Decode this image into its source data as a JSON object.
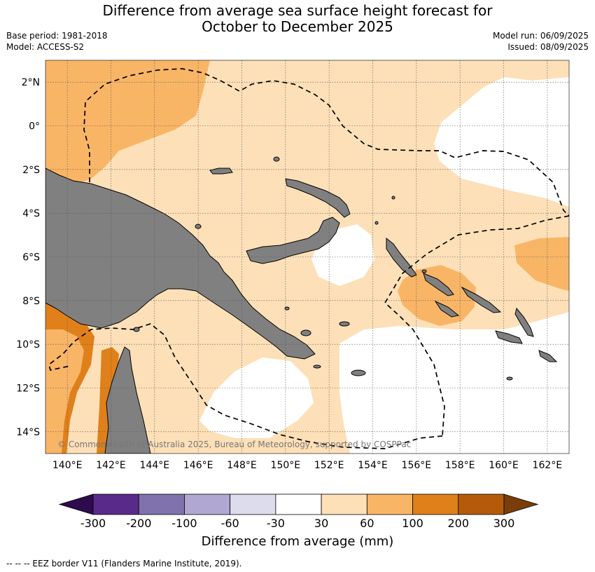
{
  "title": {
    "line1": "Difference from average sea surface height forecast for",
    "line2": "October to December 2025"
  },
  "meta": {
    "base_period": "Base period: 1981-2018",
    "model": "Model: ACCESS-S2",
    "model_run": "Model run: 06/09/2025",
    "issued": "Issued: 08/09/2025"
  },
  "map": {
    "lon_range": [
      139,
      163
    ],
    "lat_range": [
      -15,
      3
    ],
    "lat_labels": [
      "2°N",
      "0°",
      "2°S",
      "4°S",
      "6°S",
      "8°S",
      "10°S",
      "12°S",
      "14°S"
    ],
    "lon_labels": [
      "140°E",
      "142°E",
      "144°E",
      "146°E",
      "148°E",
      "150°E",
      "152°E",
      "154°E",
      "156°E",
      "158°E",
      "160°E",
      "162°E"
    ],
    "copyright": "© Commonwealth of Australia 2025, Bureau of Meteorology, supported by COSPPac",
    "colors": {
      "land": "#808080",
      "band_30_60": "#fde0b8",
      "band_60_100": "#f9b566",
      "band_100_200": "#e0801a",
      "band_neutral": "#ffffff"
    }
  },
  "colorbar": {
    "labels": [
      "-300",
      "-200",
      "-100",
      "-60",
      "-30",
      "30",
      "60",
      "100",
      "200",
      "300"
    ],
    "colors": [
      "#5a2a8a",
      "#8072ac",
      "#b0a8d2",
      "#dcdcec",
      "#ffffff",
      "#fde0b8",
      "#f9b566",
      "#e0801a",
      "#b55a0b"
    ],
    "low_extend_color": "#2e0a4e",
    "high_extend_color": "#7a3e0a",
    "title": "Difference from average (mm)"
  },
  "footer": "--  --  -- EEZ border V11 (Flanders Marine Institute, 2019)."
}
